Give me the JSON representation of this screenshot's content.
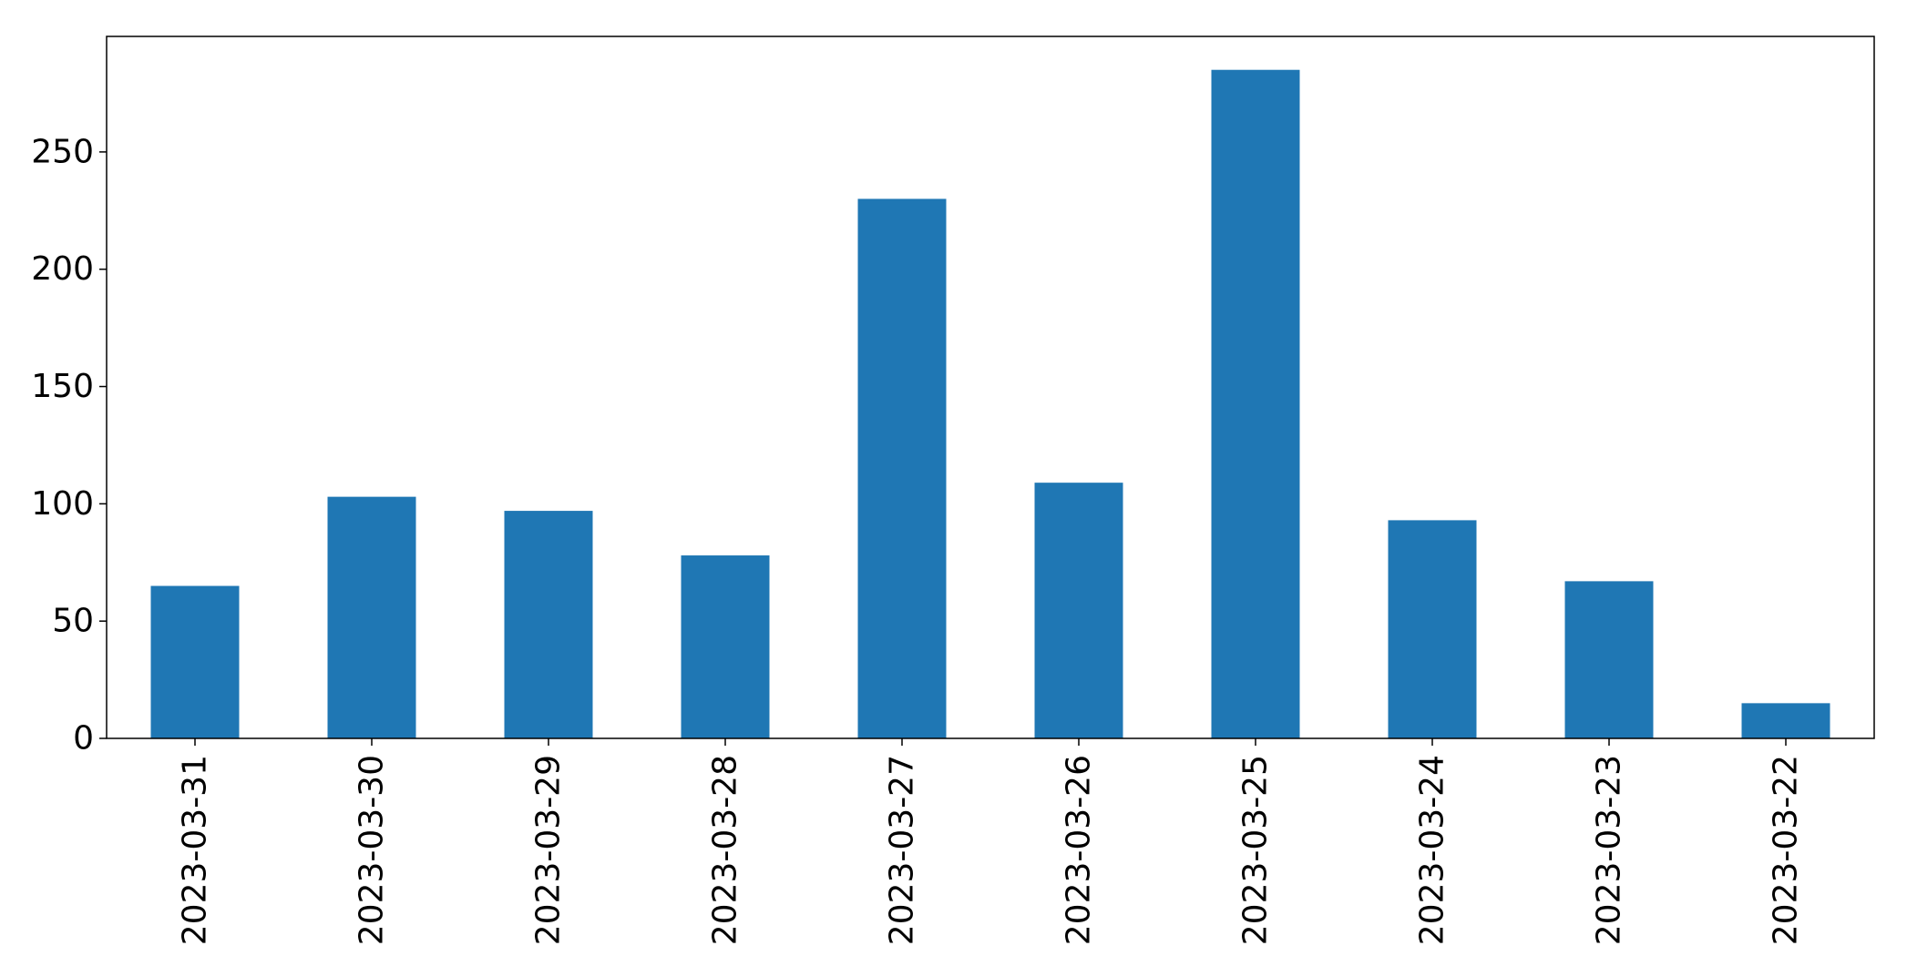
{
  "chart_data": {
    "type": "bar",
    "title": "",
    "xlabel": "",
    "ylabel": "",
    "categories": [
      "2023-03-31",
      "2023-03-30",
      "2023-03-29",
      "2023-03-28",
      "2023-03-27",
      "2023-03-26",
      "2023-03-25",
      "2023-03-24",
      "2023-03-23",
      "2023-03-22"
    ],
    "values": [
      65,
      103,
      97,
      78,
      230,
      109,
      285,
      93,
      67,
      15
    ],
    "ylim": [
      0,
      299.25
    ],
    "yticks": [
      0,
      50,
      100,
      150,
      200,
      250
    ],
    "ytick_labels": [
      "0",
      "50",
      "100",
      "150",
      "200",
      "250"
    ],
    "bar_color": "#1f77b4",
    "grid": false,
    "legend": "none"
  }
}
